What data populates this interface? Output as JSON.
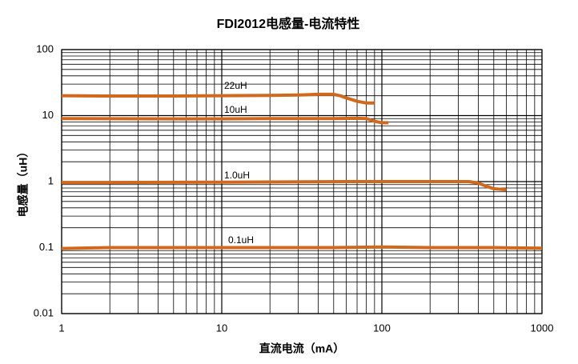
{
  "chart_data": {
    "type": "line",
    "title": "FDI2012电感量-电流特性",
    "x_label": "直流电流（mA）",
    "y_label": "电感量（uH）",
    "xscale": "log",
    "yscale": "log",
    "grid": true,
    "xlim": [
      1,
      1000
    ],
    "ylim": [
      0.01,
      100
    ],
    "xticks": [
      1,
      10,
      100,
      1000
    ],
    "yticks": [
      0.01,
      0.1,
      1,
      10,
      100
    ],
    "series": [
      {
        "name": "22uH",
        "color": "#d0691e",
        "x": [
          1,
          2,
          5,
          10,
          20,
          30,
          40,
          50,
          55,
          60,
          70,
          80,
          90
        ],
        "values": [
          20,
          19.8,
          19.8,
          20,
          20.2,
          20.5,
          21,
          21,
          20,
          18.5,
          16.5,
          15.5,
          15.5
        ]
      },
      {
        "name": "10uH",
        "color": "#d0691e",
        "x": [
          1,
          5,
          10,
          20,
          50,
          70,
          80,
          90,
          100,
          110
        ],
        "values": [
          9,
          8.9,
          8.9,
          9,
          9,
          9.1,
          9,
          8.2,
          7.8,
          7.8
        ]
      },
      {
        "name": "1.0uH",
        "color": "#d0691e",
        "x": [
          1,
          2,
          10,
          60,
          100,
          200,
          350,
          400,
          450,
          500,
          600
        ],
        "values": [
          0.97,
          0.97,
          0.98,
          1.0,
          1.0,
          1.0,
          1.0,
          0.95,
          0.85,
          0.78,
          0.75
        ]
      },
      {
        "name": "0.1uH",
        "color": "#d0691e",
        "x": [
          1,
          2,
          5,
          10,
          50,
          100,
          200,
          500,
          1000
        ],
        "values": [
          0.097,
          0.1,
          0.1,
          0.1,
          0.1,
          0.102,
          0.1,
          0.1,
          0.098
        ]
      }
    ]
  }
}
